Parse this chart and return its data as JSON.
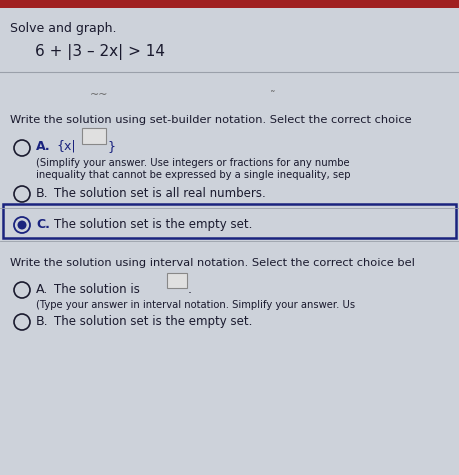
{
  "bg_color": "#cdd2da",
  "header_bar_color": "#a02020",
  "title_text": "Solve and graph.",
  "equation_text": "6 + |3 – 2x| > 14",
  "section1_label": "Write the solution using set-builder notation. Select the correct choice",
  "optA_set_subA": "(Simplify your answer. Use integers or fractions for any numbe",
  "optA_set_subB": "inequality that cannot be expressed by a single inequality, sep",
  "optB_set_text": "The solution set is all real numbers.",
  "optC_set_text": "The solution set is the empty set.",
  "section2_label": "Write the solution using interval notation. Select the correct choice bel",
  "optA_int_text": "The solution is",
  "optA_int_sub": "(Type your answer in interval notation. Simplify your answer. Us",
  "optB_int_text": "The solution set is the empty set.",
  "font_color": "#1a1a2e",
  "dark_blue": "#1a237e",
  "selected_color": "#1a237e",
  "box_border_color": "#1a237e",
  "answer_box_color": "#e0e0e0",
  "line_color": "#9aa0aa"
}
